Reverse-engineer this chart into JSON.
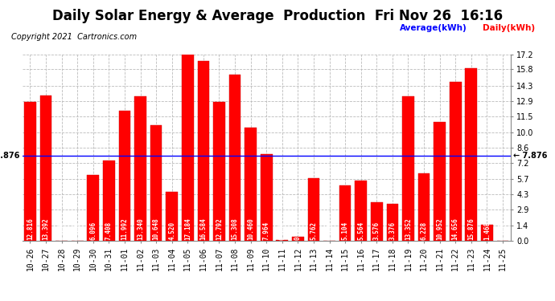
{
  "title": "Daily Solar Energy & Average  Production  Fri Nov 26  16:16",
  "copyright": "Copyright 2021  Cartronics.com",
  "legend_average": "Average(kWh)",
  "legend_daily": "Daily(kWh)",
  "average_value": 7.876,
  "categories": [
    "10-26",
    "10-27",
    "10-28",
    "10-29",
    "10-30",
    "10-31",
    "11-01",
    "11-02",
    "11-03",
    "11-04",
    "11-05",
    "11-06",
    "11-07",
    "11-08",
    "11-09",
    "11-10",
    "11-11",
    "11-12",
    "11-13",
    "11-14",
    "11-15",
    "11-16",
    "11-17",
    "11-18",
    "11-19",
    "11-20",
    "11-21",
    "11-22",
    "11-23",
    "11-24",
    "11-25"
  ],
  "values": [
    12.816,
    13.392,
    0.0,
    0.0,
    6.096,
    7.408,
    11.992,
    13.34,
    10.648,
    4.52,
    17.184,
    16.584,
    12.792,
    15.308,
    10.46,
    7.964,
    0.06,
    0.404,
    5.762,
    0.0,
    5.104,
    5.564,
    3.576,
    3.376,
    13.352,
    6.228,
    10.952,
    14.656,
    15.876,
    1.468,
    0.0
  ],
  "bar_color": "#FF0000",
  "bar_edge_color": "#CC0000",
  "average_line_color": "#0000FF",
  "background_color": "#FFFFFF",
  "grid_color": "#BBBBBB",
  "yticks": [
    0.0,
    1.4,
    2.9,
    4.3,
    5.7,
    7.2,
    8.6,
    10.0,
    11.5,
    12.9,
    14.3,
    15.8,
    17.2
  ],
  "ylim": [
    0,
    17.2
  ],
  "title_fontsize": 12,
  "axis_fontsize": 7,
  "value_fontsize": 5.5,
  "avg_label_fontsize": 7,
  "copyright_fontsize": 7
}
